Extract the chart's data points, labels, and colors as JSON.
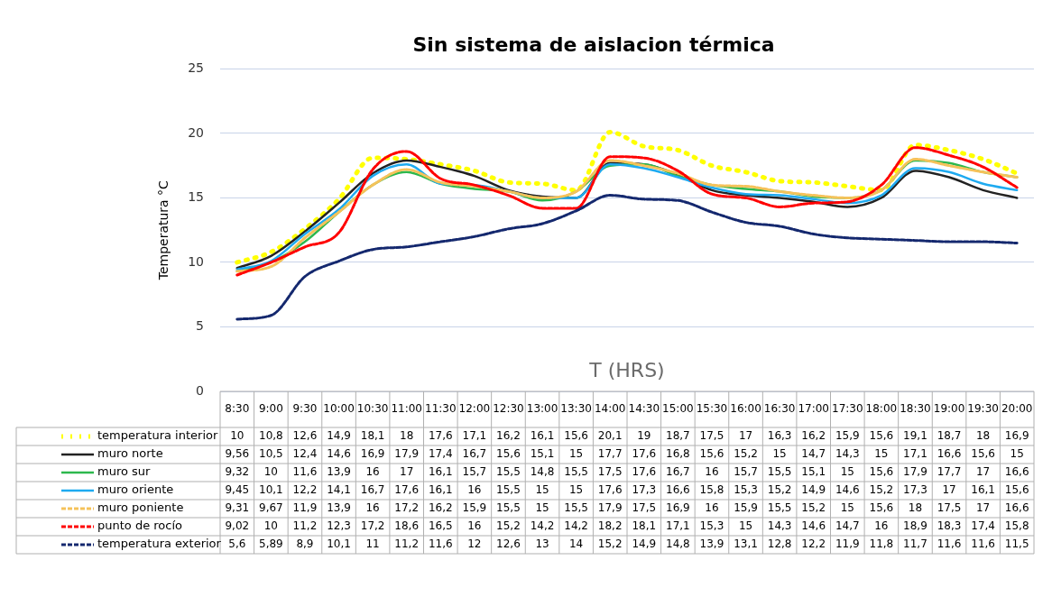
{
  "chart_data": {
    "type": "line",
    "title": "Sin sistema de aislacion térmica",
    "xlabel": "T (HRS)",
    "ylabel": "Temperatura °C",
    "categories": [
      "8:30",
      "9:00",
      "9:30",
      "10:00",
      "10:30",
      "11:00",
      "11:30",
      "12:00",
      "12:30",
      "13:00",
      "13:30",
      "14:00",
      "14:30",
      "15:00",
      "15:30",
      "16:00",
      "16:30",
      "17:00",
      "17:30",
      "18:00",
      "18:30",
      "19:00",
      "19:30",
      "20:00"
    ],
    "ylim": [
      0,
      25
    ],
    "yticks": [
      0,
      5,
      10,
      15,
      20,
      25
    ],
    "grid": "y",
    "legend": "bottom",
    "marker": "none",
    "series": [
      {
        "name": "temperatura interior",
        "color": "#ffff00",
        "line_style": "dotted",
        "values": [
          10,
          10.8,
          12.6,
          14.9,
          18.1,
          18,
          17.6,
          17.1,
          16.2,
          16.1,
          15.6,
          20.1,
          19,
          18.7,
          17.5,
          17,
          16.3,
          16.2,
          15.9,
          15.6,
          19.1,
          18.7,
          18,
          16.9
        ],
        "value_labels": [
          "10",
          "10,8",
          "12,6",
          "14,9",
          "18,1",
          "18",
          "17,6",
          "17,1",
          "16,2",
          "16,1",
          "15,6",
          "20,1",
          "19",
          "18,7",
          "17,5",
          "17",
          "16,3",
          "16,2",
          "15,9",
          "15,6",
          "19,1",
          "18,7",
          "18",
          "16,9"
        ]
      },
      {
        "name": "muro norte",
        "color": "#222222",
        "line_style": "solid",
        "values": [
          9.56,
          10.5,
          12.4,
          14.6,
          16.9,
          17.9,
          17.4,
          16.7,
          15.6,
          15.1,
          15,
          17.7,
          17.6,
          16.8,
          15.6,
          15.2,
          15,
          14.7,
          14.3,
          15,
          17.1,
          16.6,
          15.6,
          15
        ],
        "value_labels": [
          "9,56",
          "10,5",
          "12,4",
          "14,6",
          "16,9",
          "17,9",
          "17,4",
          "16,7",
          "15,6",
          "15,1",
          "15",
          "17,7",
          "17,6",
          "16,8",
          "15,6",
          "15,2",
          "15",
          "14,7",
          "14,3",
          "15",
          "17,1",
          "16,6",
          "15,6",
          "15"
        ]
      },
      {
        "name": "muro sur",
        "color": "#2db84d",
        "line_style": "solid",
        "values": [
          9.32,
          10,
          11.6,
          13.9,
          16,
          17,
          16.1,
          15.7,
          15.5,
          14.8,
          15.5,
          17.5,
          17.6,
          16.7,
          16,
          15.7,
          15.5,
          15.1,
          15,
          15.6,
          17.9,
          17.7,
          17,
          16.6
        ],
        "value_labels": [
          "9,32",
          "10",
          "11,6",
          "13,9",
          "16",
          "17",
          "16,1",
          "15,7",
          "15,5",
          "14,8",
          "15,5",
          "17,5",
          "17,6",
          "16,7",
          "16",
          "15,7",
          "15,5",
          "15,1",
          "15",
          "15,6",
          "17,9",
          "17,7",
          "17",
          "16,6"
        ]
      },
      {
        "name": "muro oriente",
        "color": "#1eaaf0",
        "line_style": "solid",
        "values": [
          9.45,
          10.1,
          12.2,
          14.1,
          16.7,
          17.6,
          16.1,
          16,
          15.5,
          15,
          15,
          17.6,
          17.3,
          16.6,
          15.8,
          15.3,
          15.2,
          14.9,
          14.6,
          15.2,
          17.3,
          17,
          16.1,
          15.6
        ],
        "value_labels": [
          "9,45",
          "10,1",
          "12,2",
          "14,1",
          "16,7",
          "17,6",
          "16,1",
          "16",
          "15,5",
          "15",
          "15",
          "17,6",
          "17,3",
          "16,6",
          "15,8",
          "15,3",
          "15,2",
          "14,9",
          "14,6",
          "15,2",
          "17,3",
          "17",
          "16,1",
          "15,6"
        ]
      },
      {
        "name": "muro poniente",
        "color": "#f5c25a",
        "line_style": "dashed",
        "values": [
          9.31,
          9.67,
          11.9,
          13.9,
          16,
          17.2,
          16.2,
          15.9,
          15.5,
          15,
          15.5,
          17.9,
          17.5,
          16.9,
          16,
          15.9,
          15.5,
          15.2,
          15,
          15.6,
          18,
          17.5,
          17,
          16.6
        ],
        "value_labels": [
          "9,31",
          "9,67",
          "11,9",
          "13,9",
          "16",
          "17,2",
          "16,2",
          "15,9",
          "15,5",
          "15",
          "15,5",
          "17,9",
          "17,5",
          "16,9",
          "16",
          "15,9",
          "15,5",
          "15,2",
          "15",
          "15,6",
          "18",
          "17,5",
          "17",
          "16,6"
        ]
      },
      {
        "name": "punto de rocío",
        "color": "#ff0000",
        "line_style": "dashed",
        "values": [
          9.02,
          10,
          11.2,
          12.3,
          17.2,
          18.6,
          16.5,
          16,
          15.2,
          14.2,
          14.2,
          18.2,
          18.1,
          17.1,
          15.3,
          15,
          14.3,
          14.6,
          14.7,
          16,
          18.9,
          18.3,
          17.4,
          15.8
        ],
        "value_labels": [
          "9,02",
          "10",
          "11,2",
          "12,3",
          "17,2",
          "18,6",
          "16,5",
          "16",
          "15,2",
          "14,2",
          "14,2",
          "18,2",
          "18,1",
          "17,1",
          "15,3",
          "15",
          "14,3",
          "14,6",
          "14,7",
          "16",
          "18,9",
          "18,3",
          "17,4",
          "15,8"
        ]
      },
      {
        "name": "temperatura exterior",
        "color": "#14286e",
        "line_style": "dashed",
        "values": [
          5.6,
          5.89,
          8.9,
          10.1,
          11,
          11.2,
          11.6,
          12,
          12.6,
          13,
          14,
          15.2,
          14.9,
          14.8,
          13.9,
          13.1,
          12.8,
          12.2,
          11.9,
          11.8,
          11.7,
          11.6,
          11.6,
          11.5
        ],
        "value_labels": [
          "5,6",
          "5,89",
          "8,9",
          "10,1",
          "11",
          "11,2",
          "11,6",
          "12",
          "12,6",
          "13",
          "14",
          "15,2",
          "14,9",
          "14,8",
          "13,9",
          "13,1",
          "12,8",
          "12,2",
          "11,9",
          "11,8",
          "11,7",
          "11,6",
          "11,6",
          "11,5"
        ]
      }
    ]
  }
}
